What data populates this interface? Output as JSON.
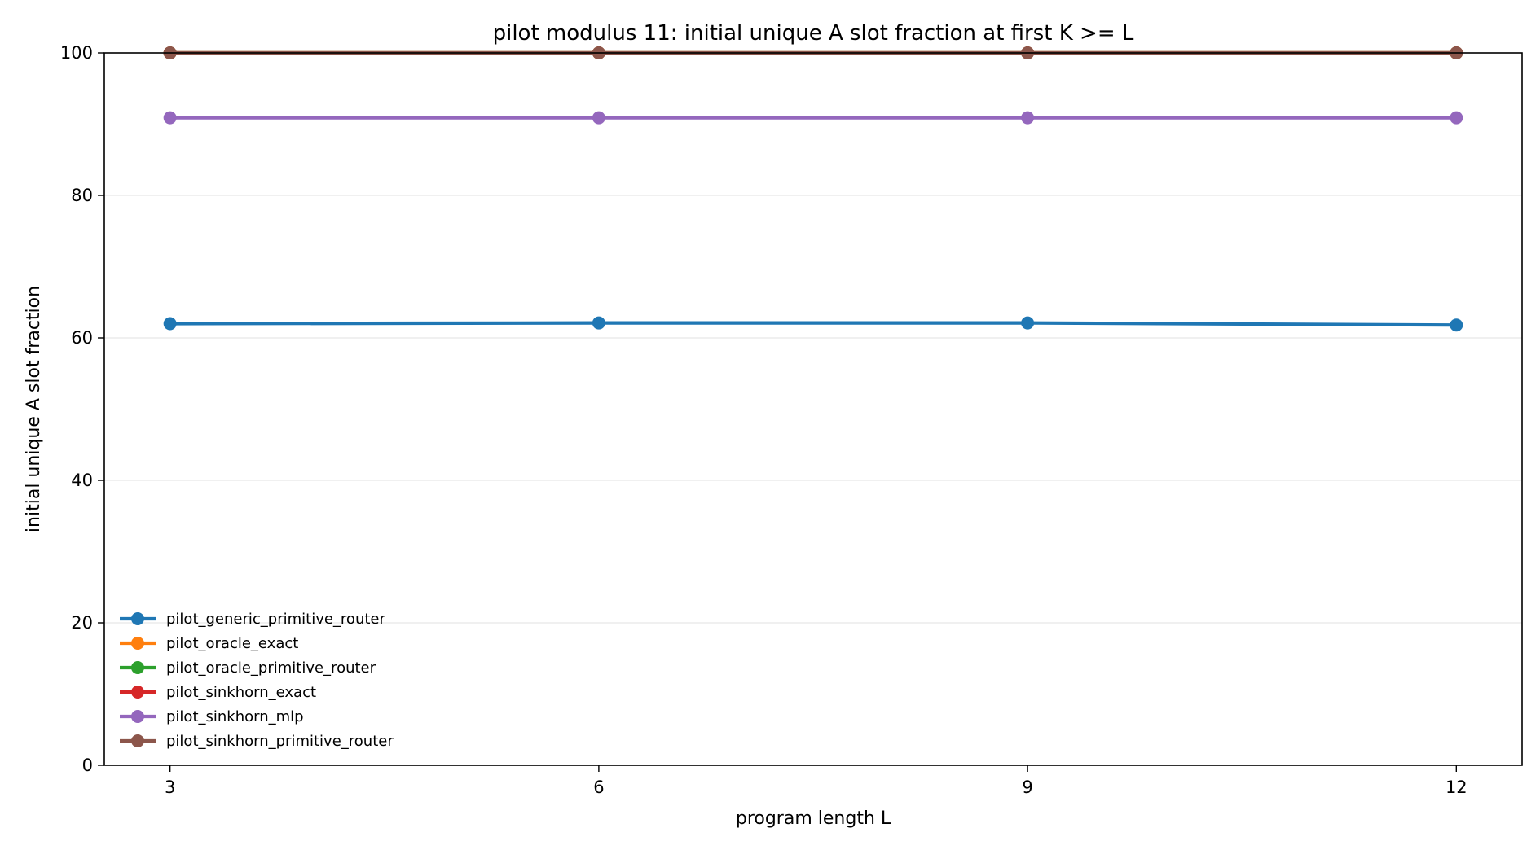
{
  "chart_data": {
    "type": "line",
    "title": "pilot modulus 11: initial unique A slot fraction at first K >= L",
    "xlabel": "program length L",
    "ylabel": "initial unique A slot fraction",
    "x": [
      3,
      6,
      9,
      12
    ],
    "x_ticks": [
      "3",
      "6",
      "9",
      "12"
    ],
    "xlim": [
      2.54,
      12.46
    ],
    "ylim": [
      0,
      100
    ],
    "y_ticks": [
      "0",
      "20",
      "40",
      "60",
      "80",
      "100"
    ],
    "grid": "horizontal",
    "legend_position": "lower-left",
    "series": [
      {
        "name": "pilot_generic_primitive_router",
        "color": "#1f77b4",
        "values": [
          62.0,
          62.1,
          62.1,
          61.8
        ]
      },
      {
        "name": "pilot_oracle_exact",
        "color": "#ff7f0e",
        "values": [
          100,
          100,
          100,
          100
        ]
      },
      {
        "name": "pilot_oracle_primitive_router",
        "color": "#2ca02c",
        "values": [
          100,
          100,
          100,
          100
        ]
      },
      {
        "name": "pilot_sinkhorn_exact",
        "color": "#d62728",
        "values": [
          100,
          100,
          100,
          100
        ]
      },
      {
        "name": "pilot_sinkhorn_mlp",
        "color": "#9467bd",
        "values": [
          90.9,
          90.9,
          90.9,
          90.9
        ]
      },
      {
        "name": "pilot_sinkhorn_primitive_router",
        "color": "#8c564b",
        "values": [
          100,
          100,
          100,
          100
        ]
      }
    ]
  }
}
